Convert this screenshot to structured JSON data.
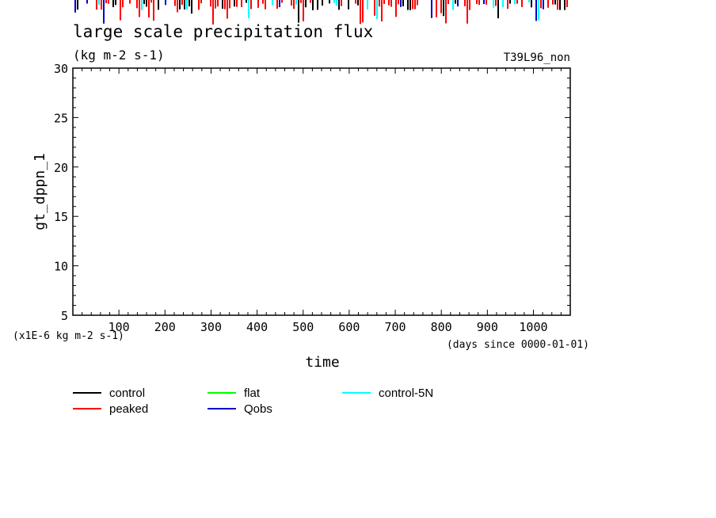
{
  "chart_data": {
    "type": "line",
    "title": "large scale precipitation flux",
    "units": "(kg m-2 s-1)",
    "run_label": "T39L96_non",
    "ylabel": "gt_dppn_1",
    "xlabel": "time",
    "x_units": "(days since 0000-01-01)",
    "y_scale_note": "(x1E-6 kg m-2 s-1)",
    "xlim": [
      0,
      1080
    ],
    "ylim": [
      5,
      30
    ],
    "x_ticks": [
      "100",
      "200",
      "300",
      "400",
      "500",
      "600",
      "700",
      "800",
      "900",
      "1000"
    ],
    "y_ticks": [
      "5",
      "10",
      "15",
      "20",
      "25",
      "30"
    ],
    "series": [
      {
        "name": "control",
        "color": "#000000"
      },
      {
        "name": "peaked",
        "color": "#ff0000"
      },
      {
        "name": "flat",
        "color": "#00ff00"
      },
      {
        "name": "Qobs",
        "color": "#0000cc"
      },
      {
        "name": "control-5N",
        "color": "#00ffff"
      }
    ]
  }
}
